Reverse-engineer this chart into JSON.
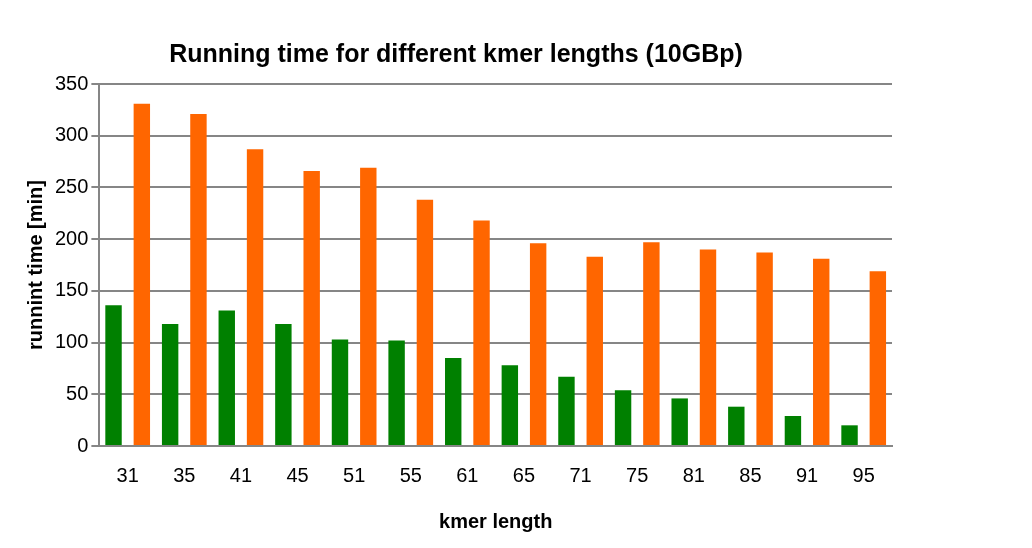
{
  "chart_data": {
    "type": "bar",
    "title": "Running time for different kmer lengths (10GBp)",
    "xlabel": "kmer length",
    "ylabel": "runnint time [min]",
    "categories": [
      "31",
      "35",
      "41",
      "45",
      "51",
      "55",
      "61",
      "65",
      "71",
      "75",
      "81",
      "85",
      "91",
      "95"
    ],
    "series": [
      {
        "color": "#008000",
        "values": [
          136,
          118,
          131,
          118,
          103,
          102,
          85,
          78,
          67,
          54,
          46,
          38,
          29,
          20
        ]
      },
      {
        "color": "#ff6600",
        "values": [
          331,
          321,
          287,
          266,
          269,
          238,
          218,
          196,
          183,
          197,
          190,
          187,
          181,
          169
        ]
      }
    ],
    "ylim": [
      0,
      350
    ],
    "yticks": [
      0,
      50,
      100,
      150,
      200,
      250,
      300,
      350
    ],
    "grid": "y"
  }
}
